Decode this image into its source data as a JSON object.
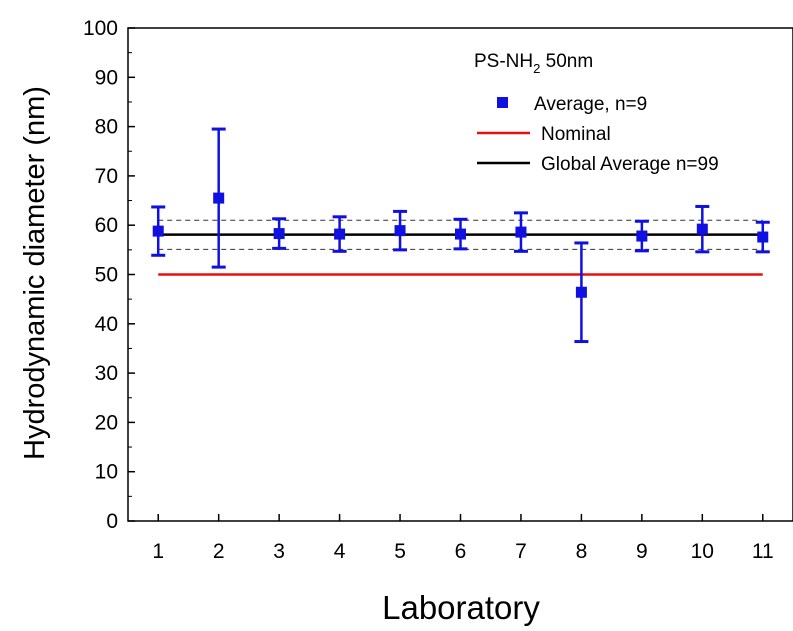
{
  "chart_data": {
    "type": "scatter",
    "title": "PS-NH2 50nm",
    "title_parts": {
      "main": "PS-NH",
      "sub": "2",
      "tail": " 50nm"
    },
    "xlabel": "Laboratory",
    "ylabel": "Hydrodynamic diameter (nm)",
    "xlim": [
      0.5,
      11.5
    ],
    "ylim": [
      0,
      100
    ],
    "x_ticks": [
      "1",
      "2",
      "3",
      "4",
      "5",
      "6",
      "7",
      "8",
      "9",
      "10",
      "11"
    ],
    "y_ticks": [
      "0",
      "10",
      "20",
      "30",
      "40",
      "50",
      "60",
      "70",
      "80",
      "90",
      "100"
    ],
    "grid": false,
    "legend_position": "top-right",
    "series": [
      {
        "name": "Average, n=9",
        "kind": "points-with-error-bars",
        "color": "#1010e0",
        "points": [
          {
            "x": 1,
            "y": 58.8,
            "low": 53.9,
            "high": 63.7
          },
          {
            "x": 2,
            "y": 65.5,
            "low": 51.5,
            "high": 79.5
          },
          {
            "x": 3,
            "y": 58.3,
            "low": 55.3,
            "high": 61.3
          },
          {
            "x": 4,
            "y": 58.2,
            "low": 54.7,
            "high": 61.7
          },
          {
            "x": 5,
            "y": 58.9,
            "low": 55.0,
            "high": 62.8
          },
          {
            "x": 6,
            "y": 58.2,
            "low": 55.2,
            "high": 61.2
          },
          {
            "x": 7,
            "y": 58.6,
            "low": 54.7,
            "high": 62.5
          },
          {
            "x": 8,
            "y": 46.4,
            "low": 36.4,
            "high": 56.4
          },
          {
            "x": 9,
            "y": 57.8,
            "low": 54.8,
            "high": 60.8
          },
          {
            "x": 10,
            "y": 59.2,
            "low": 54.6,
            "high": 63.8
          },
          {
            "x": 11,
            "y": 57.6,
            "low": 54.6,
            "high": 60.6
          }
        ]
      },
      {
        "name": "Nominal",
        "kind": "line",
        "color": "#e81010",
        "x": [
          1,
          11
        ],
        "y": [
          50,
          50
        ]
      },
      {
        "name": "Global Average n=99",
        "kind": "line",
        "color": "#000000",
        "x": [
          1,
          11
        ],
        "y": [
          58.1,
          58.1
        ],
        "band_dashed": [
          55.1,
          61.0
        ]
      }
    ]
  }
}
